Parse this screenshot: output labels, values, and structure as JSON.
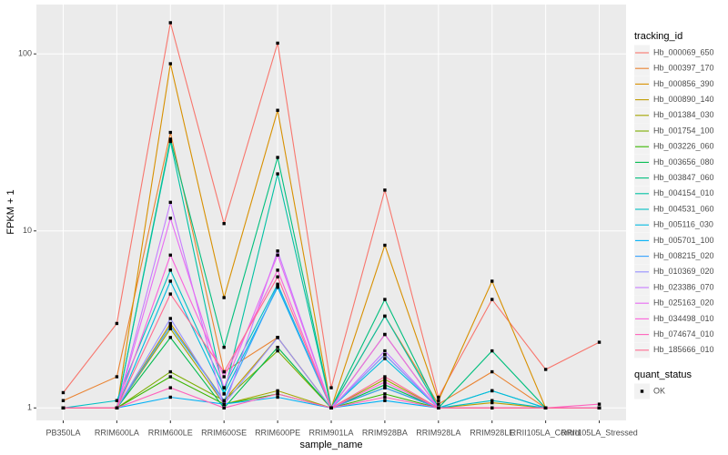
{
  "chart_data": {
    "type": "line",
    "x_label": "sample_name",
    "y_label": "FPKM + 1",
    "log_y": true,
    "grid": true,
    "categories": [
      "PB350LA",
      "RRIM600LA",
      "RRIM600LE",
      "RRIM600SE",
      "RRIM600PE",
      "RRIM901LA",
      "RRIM928BA",
      "RRIM928LA",
      "RRIM928LE",
      "RRII105LA_Control",
      "RRII105LA_Stressed"
    ],
    "ylim": [
      0.85,
      190
    ],
    "yticks": [
      1,
      10,
      100
    ],
    "legend_title": "tracking_id",
    "shape_legend": {
      "title": "quant_status",
      "labels": [
        "OK"
      ]
    },
    "series": [
      {
        "name": "Hb_000069_650",
        "color": "#F8766D",
        "values": [
          1.22,
          3.0,
          150,
          11,
          115,
          1.3,
          17,
          1.15,
          4.1,
          1.65,
          2.35
        ]
      },
      {
        "name": "Hb_000397_170",
        "color": "#EA8331",
        "values": [
          1.1,
          1.5,
          36,
          1.6,
          2.5,
          1.0,
          3.3,
          1.05,
          1.6,
          1.0,
          1.0
        ]
      },
      {
        "name": "Hb_000856_390",
        "color": "#D89000",
        "values": [
          1.0,
          1.0,
          88,
          4.2,
          48,
          1.0,
          8.3,
          1.1,
          5.2,
          1.0,
          1.0
        ]
      },
      {
        "name": "Hb_000890_140",
        "color": "#C09B00",
        "values": [
          1.0,
          1.0,
          3.0,
          1.1,
          2.5,
          1.0,
          2.6,
          1.0,
          1.07,
          1.0,
          1.0
        ]
      },
      {
        "name": "Hb_001384_030",
        "color": "#A3A500",
        "values": [
          1.0,
          1.0,
          2.8,
          1.05,
          1.25,
          1.0,
          1.45,
          1.0,
          1.0,
          1.0,
          1.0
        ]
      },
      {
        "name": "Hb_001754_100",
        "color": "#7CAE00",
        "values": [
          1.0,
          1.0,
          1.6,
          1.1,
          2.1,
          1.0,
          1.3,
          1.0,
          1.0,
          1.0,
          1.0
        ]
      },
      {
        "name": "Hb_003226_060",
        "color": "#39B600",
        "values": [
          1.0,
          1.0,
          1.5,
          1.05,
          1.2,
          1.0,
          1.2,
          1.0,
          1.0,
          1.0,
          1.0
        ]
      },
      {
        "name": "Hb_003656_080",
        "color": "#00BB4E",
        "values": [
          1.0,
          1.0,
          2.5,
          1.0,
          2.2,
          1.0,
          1.35,
          1.0,
          1.0,
          1.0,
          1.0
        ]
      },
      {
        "name": "Hb_003847_060",
        "color": "#00BF7D",
        "values": [
          1.0,
          1.0,
          33,
          2.2,
          26,
          1.0,
          4.1,
          1.0,
          2.1,
          1.0,
          1.0
        ]
      },
      {
        "name": "Hb_004154_010",
        "color": "#00C1A3",
        "values": [
          1.0,
          1.0,
          32,
          1.2,
          21,
          1.0,
          3.3,
          1.0,
          1.25,
          1.0,
          1.0
        ]
      },
      {
        "name": "Hb_004531_060",
        "color": "#00BFC4",
        "values": [
          1.0,
          1.1,
          6.0,
          1.3,
          5.0,
          1.0,
          2.0,
          1.0,
          1.1,
          1.0,
          1.0
        ]
      },
      {
        "name": "Hb_005116_030",
        "color": "#00BAE0",
        "values": [
          1.0,
          1.0,
          5.2,
          1.2,
          4.8,
          1.0,
          1.9,
          1.0,
          1.25,
          1.0,
          1.0
        ]
      },
      {
        "name": "Hb_005701_100",
        "color": "#00B0F6",
        "values": [
          1.0,
          1.0,
          1.15,
          1.05,
          1.15,
          1.0,
          1.1,
          1.0,
          1.0,
          1.0,
          1.0
        ]
      },
      {
        "name": "Hb_008215_020",
        "color": "#35A2FF",
        "values": [
          1.0,
          1.0,
          2.9,
          1.1,
          4.9,
          1.0,
          1.3,
          1.0,
          1.0,
          1.0,
          1.0
        ]
      },
      {
        "name": "Hb_010369_020",
        "color": "#9590FF",
        "values": [
          1.0,
          1.0,
          3.2,
          1.05,
          2.5,
          1.0,
          2.0,
          1.0,
          1.0,
          1.0,
          1.0
        ]
      },
      {
        "name": "Hb_023386_070",
        "color": "#C77CFF",
        "values": [
          1.0,
          1.0,
          14.5,
          1.0,
          7.7,
          1.0,
          2.1,
          1.0,
          1.0,
          1.0,
          1.0
        ]
      },
      {
        "name": "Hb_025163_020",
        "color": "#E76BF3",
        "values": [
          1.0,
          1.0,
          11.8,
          1.3,
          7.3,
          1.0,
          2.6,
          1.0,
          1.0,
          1.0,
          1.0
        ]
      },
      {
        "name": "Hb_034498_010",
        "color": "#FA62DB",
        "values": [
          1.0,
          1.0,
          7.3,
          1.5,
          6.0,
          1.0,
          1.4,
          1.0,
          1.0,
          1.0,
          1.0
        ]
      },
      {
        "name": "Hb_074674_010",
        "color": "#FF62BC",
        "values": [
          1.0,
          1.0,
          1.3,
          1.0,
          1.2,
          1.0,
          1.15,
          1.0,
          1.0,
          1.0,
          1.05
        ]
      },
      {
        "name": "Hb_185666_010",
        "color": "#FF6C91",
        "values": [
          1.0,
          1.0,
          4.4,
          1.6,
          5.5,
          1.0,
          1.5,
          1.0,
          1.0,
          1.0,
          1.0
        ]
      }
    ]
  }
}
